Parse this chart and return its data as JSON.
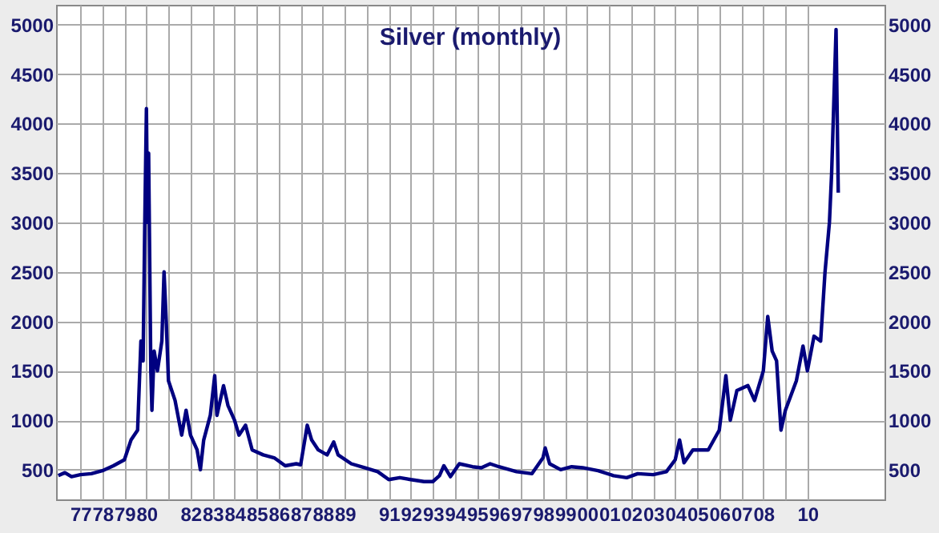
{
  "chart_data": {
    "type": "line",
    "title": "Silver (monthly)",
    "x": [
      1976.0,
      1976.3,
      1976.6,
      1977.0,
      1977.5,
      1978.0,
      1978.5,
      1979.0,
      1979.3,
      1979.6,
      1979.75,
      1979.85,
      1979.92,
      1980.0,
      1980.05,
      1980.1,
      1980.2,
      1980.25,
      1980.35,
      1980.5,
      1980.7,
      1980.8,
      1980.9,
      1981.0,
      1981.3,
      1981.6,
      1981.8,
      1982.0,
      1982.3,
      1982.45,
      1982.6,
      1982.9,
      1983.1,
      1983.2,
      1983.5,
      1983.7,
      1984.0,
      1984.2,
      1984.5,
      1984.8,
      1985.3,
      1985.8,
      1986.3,
      1986.8,
      1987.0,
      1987.3,
      1987.5,
      1987.8,
      1988.2,
      1988.5,
      1988.7,
      1989.3,
      1989.9,
      1990.5,
      1991.0,
      1991.5,
      1992.0,
      1992.6,
      1993.0,
      1993.3,
      1993.5,
      1993.8,
      1994.2,
      1994.8,
      1995.2,
      1995.6,
      1996.0,
      1996.8,
      1997.5,
      1998.0,
      1998.1,
      1998.3,
      1998.8,
      1999.3,
      1999.8,
      2000.5,
      2001.2,
      2001.8,
      2002.3,
      2003.0,
      2003.6,
      2004.0,
      2004.2,
      2004.4,
      2004.8,
      2005.5,
      2006.0,
      2006.3,
      2006.5,
      2006.8,
      2007.3,
      2007.6,
      2008.0,
      2008.2,
      2008.4,
      2008.6,
      2008.8,
      2009.0,
      2009.5,
      2009.8,
      2010.0,
      2010.3,
      2010.6,
      2010.8,
      2011.0,
      2011.1,
      2011.3,
      2011.4
    ],
    "series": [
      {
        "color": "#000080",
        "values": [
          440,
          470,
          430,
          450,
          460,
          490,
          540,
          600,
          800,
          900,
          1800,
          1600,
          2900,
          4150,
          3000,
          3700,
          1500,
          1100,
          1700,
          1500,
          1800,
          2500,
          2000,
          1400,
          1200,
          850,
          1100,
          850,
          700,
          500,
          800,
          1050,
          1450,
          1050,
          1350,
          1150,
          1000,
          850,
          950,
          700,
          650,
          620,
          540,
          560,
          550,
          950,
          800,
          700,
          650,
          780,
          650,
          560,
          520,
          480,
          400,
          420,
          400,
          380,
          380,
          440,
          540,
          430,
          560,
          530,
          520,
          560,
          530,
          480,
          460,
          620,
          720,
          560,
          500,
          530,
          520,
          490,
          440,
          420,
          460,
          450,
          480,
          600,
          800,
          570,
          700,
          700,
          900,
          1450,
          1000,
          1300,
          1350,
          1200,
          1500,
          2050,
          1700,
          1600,
          900,
          1100,
          1400,
          1750,
          1500,
          1850,
          1800,
          2500,
          3000,
          3500,
          4950,
          3300
        ]
      }
    ],
    "xlim": [
      1975.9,
      2013.5
    ],
    "xticks": [
      {
        "value": 1977,
        "label": "77"
      },
      {
        "value": 1978,
        "label": "78"
      },
      {
        "value": 1979,
        "label": "79"
      },
      {
        "value": 1980,
        "label": "80"
      },
      {
        "value": 1981,
        "label": null
      },
      {
        "value": 1982,
        "label": "82"
      },
      {
        "value": 1983,
        "label": "83"
      },
      {
        "value": 1984,
        "label": "84"
      },
      {
        "value": 1985,
        "label": "85"
      },
      {
        "value": 1986,
        "label": "86"
      },
      {
        "value": 1987,
        "label": "87"
      },
      {
        "value": 1988,
        "label": "88"
      },
      {
        "value": 1989,
        "label": "89"
      },
      {
        "value": 1990,
        "label": null
      },
      {
        "value": 1991,
        "label": "91"
      },
      {
        "value": 1992,
        "label": "92"
      },
      {
        "value": 1993,
        "label": "93"
      },
      {
        "value": 1994,
        "label": "94"
      },
      {
        "value": 1995,
        "label": "95"
      },
      {
        "value": 1996,
        "label": "96"
      },
      {
        "value": 1997,
        "label": "97"
      },
      {
        "value": 1998,
        "label": "98"
      },
      {
        "value": 1999,
        "label": "99"
      },
      {
        "value": 2000,
        "label": "00"
      },
      {
        "value": 2001,
        "label": "01"
      },
      {
        "value": 2002,
        "label": "02"
      },
      {
        "value": 2003,
        "label": "03"
      },
      {
        "value": 2004,
        "label": "04"
      },
      {
        "value": 2005,
        "label": "05"
      },
      {
        "value": 2006,
        "label": "06"
      },
      {
        "value": 2007,
        "label": "07"
      },
      {
        "value": 2008,
        "label": "08"
      },
      {
        "value": 2009,
        "label": null
      },
      {
        "value": 2010,
        "label": "10"
      }
    ],
    "ylim": [
      200,
      5200
    ],
    "yticks": [
      500,
      1000,
      1500,
      2000,
      2500,
      3000,
      3500,
      4000,
      4500,
      5000
    ],
    "y2lim": [
      200,
      5200
    ],
    "y2ticks": [
      500,
      1000,
      1500,
      2000,
      2500,
      3000,
      3500,
      4000,
      4500,
      5000
    ],
    "grid": true,
    "marker": "none",
    "line_style": "solid"
  }
}
